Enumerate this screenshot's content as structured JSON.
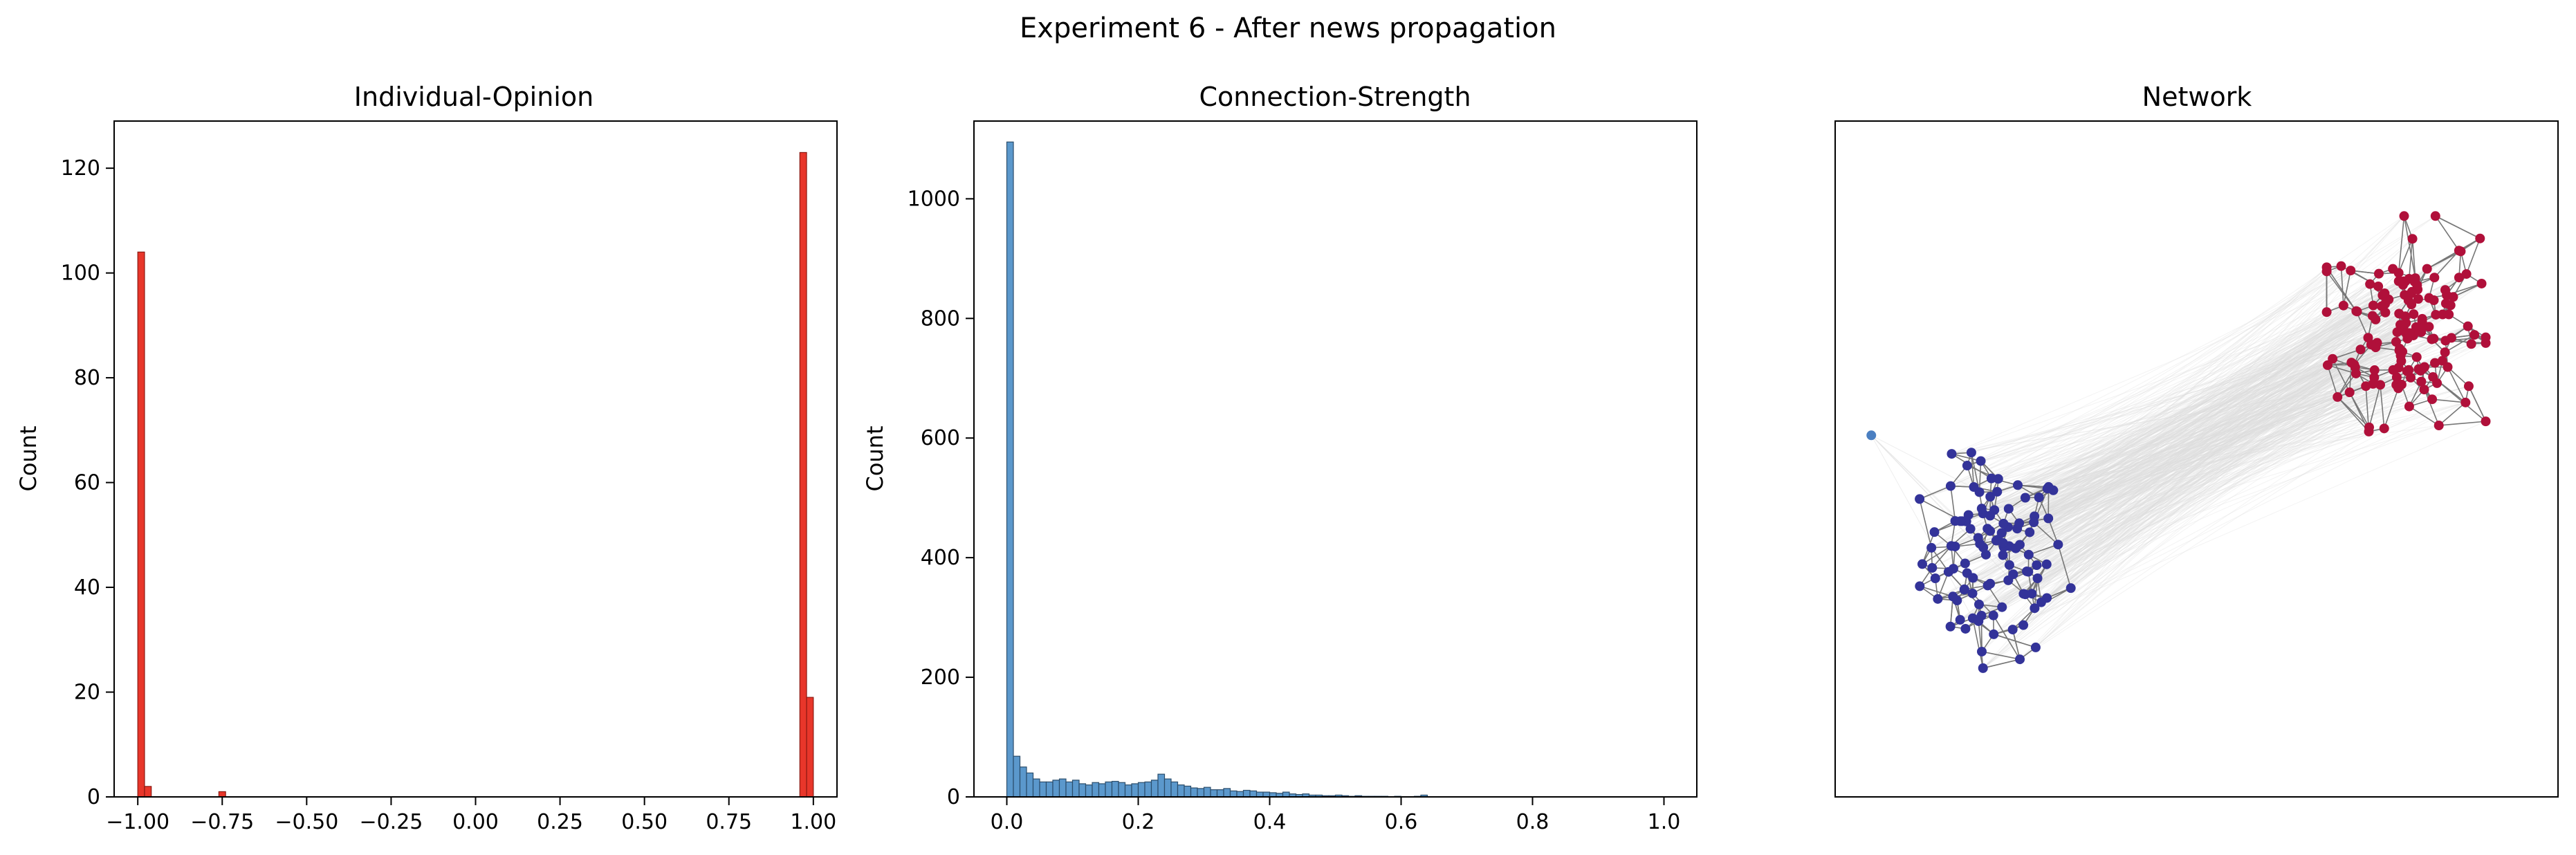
{
  "figure": {
    "suptitle": "Experiment 6 - After news propagation"
  },
  "chart_data": [
    {
      "type": "bar",
      "title": "Individual-Opinion",
      "xlabel": "",
      "ylabel": "Count",
      "xlim": [
        -1.07,
        1.07
      ],
      "ylim": [
        0,
        129
      ],
      "bin_width": 0.02,
      "color": "#e8362a",
      "edge_color": "#8b1a12",
      "xticks": [
        -1.0,
        -0.75,
        -0.5,
        -0.25,
        0.0,
        0.25,
        0.5,
        0.75,
        1.0
      ],
      "xtick_labels": [
        "−1.00",
        "−0.75",
        "−0.50",
        "−0.25",
        "0.00",
        "0.25",
        "0.50",
        "0.75",
        "1.00"
      ],
      "yticks": [
        0,
        20,
        40,
        60,
        80,
        100,
        120
      ],
      "ytick_labels": [
        "0",
        "20",
        "40",
        "60",
        "80",
        "100",
        "120"
      ],
      "bins": [
        {
          "x": -1.0,
          "count": 104
        },
        {
          "x": -0.98,
          "count": 2
        },
        {
          "x": -0.76,
          "count": 1
        },
        {
          "x": 0.96,
          "count": 123
        },
        {
          "x": 0.98,
          "count": 19
        }
      ]
    },
    {
      "type": "bar",
      "title": "Connection-Strength",
      "xlabel": "",
      "ylabel": "Count",
      "xlim": [
        -0.05,
        1.05
      ],
      "ylim": [
        0,
        1130
      ],
      "bin_width": 0.01,
      "color": "#5b98cc",
      "edge_color": "#2b4d6b",
      "xticks": [
        0.0,
        0.2,
        0.4,
        0.6,
        0.8,
        1.0
      ],
      "xtick_labels": [
        "0.0",
        "0.2",
        "0.4",
        "0.6",
        "0.8",
        "1.0"
      ],
      "yticks": [
        0,
        200,
        400,
        600,
        800,
        1000
      ],
      "ytick_labels": [
        "0",
        "200",
        "400",
        "600",
        "800",
        "1000"
      ],
      "bins_start": 0.0,
      "counts": [
        1095,
        68,
        50,
        40,
        30,
        25,
        25,
        28,
        30,
        25,
        28,
        22,
        20,
        24,
        22,
        25,
        26,
        24,
        20,
        22,
        24,
        25,
        28,
        38,
        30,
        25,
        20,
        18,
        15,
        14,
        16,
        12,
        12,
        14,
        10,
        9,
        11,
        10,
        8,
        8,
        7,
        6,
        8,
        5,
        4,
        5,
        3,
        3,
        2,
        2,
        3,
        2,
        1,
        2,
        1,
        1,
        1,
        1,
        0,
        1,
        0,
        0,
        1,
        3,
        0,
        0,
        0,
        0,
        0,
        0,
        0,
        0,
        0,
        0,
        0,
        0,
        0,
        0,
        0,
        0,
        0,
        0,
        0,
        0,
        0,
        0,
        0,
        0,
        0,
        0,
        0,
        0,
        0,
        0,
        0,
        0,
        0,
        0,
        0,
        0
      ]
    },
    {
      "type": "scatter",
      "title": "Network",
      "xlabel": "",
      "ylabel": "",
      "axes_visible": false,
      "clusters": [
        {
          "center": [
            0.22,
            0.35
          ],
          "spread": [
            0.1,
            0.145
          ],
          "nodes": 106,
          "color": "#333399"
        },
        {
          "center": [
            0.79,
            0.7
          ],
          "spread": [
            0.1,
            0.145
          ],
          "nodes": 142,
          "color": "#b0103a"
        }
      ],
      "outlier": {
        "position": [
          0.05,
          0.535
        ],
        "color": "#4a7fc1"
      },
      "intra_edge_color": "#777777",
      "inter_edge_color": "#dddddd"
    }
  ]
}
